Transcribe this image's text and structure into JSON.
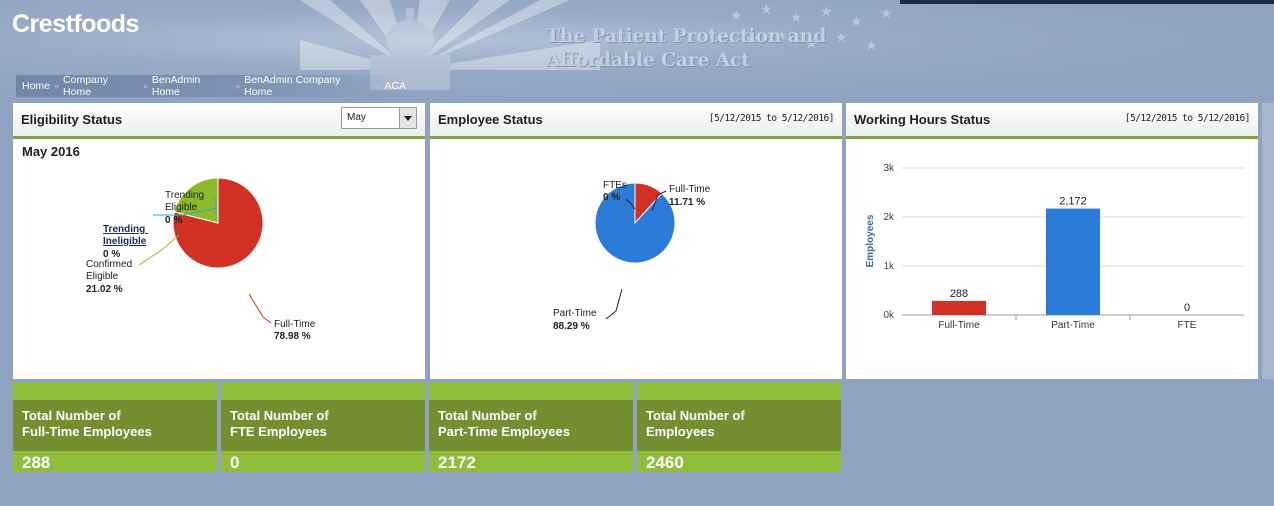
{
  "brand": "Crestfoods",
  "banner_title_line1": "The Patient Protection and",
  "banner_title_line2": "Affordable Care Act",
  "breadcrumb": [
    "Home",
    "Company Home",
    "BenAdmin Home",
    "BenAdmin Company Home",
    "ACA"
  ],
  "eligibility": {
    "title": "Eligibility Status",
    "month_select": "May",
    "period": "May 2016",
    "labels": {
      "trending_eligible_1": "Trending",
      "trending_eligible_2": "Eligible",
      "trending_eligible_pct": "0 %",
      "trending_ineligible_1": "Trending",
      "trending_ineligible_2": "Ineligible",
      "trending_ineligible_pct": "0 %",
      "confirmed_1": "Confirmed",
      "confirmed_2": "Eligible",
      "confirmed_pct": "21.02 %",
      "fulltime": "Full-Time",
      "fulltime_pct": "78.98 %"
    }
  },
  "employee_status": {
    "title": "Employee Status",
    "range": "[5/12/2015 to 5/12/2016]",
    "labels": {
      "ftes": "FTEs",
      "ftes_pct": "0 %",
      "fulltime": "Full-Time",
      "fulltime_pct": "11.71 %",
      "parttime": "Part-Time",
      "parttime_pct": "88.29 %"
    }
  },
  "working_hours": {
    "title": "Working Hours Status",
    "range": "[5/12/2015 to 5/12/2016]",
    "ylabel": "Employees"
  },
  "tiles": [
    {
      "line1": "Total Number of",
      "line2": "Full-Time Employees",
      "value": "288"
    },
    {
      "line1": "Total Number of",
      "line2": "FTE Employees",
      "value": "0"
    },
    {
      "line1": "Total Number of",
      "line2": "Part-Time Employees",
      "value": "2172"
    },
    {
      "line1": "Total Number of",
      "line2": "Employees",
      "value": "2460"
    }
  ],
  "colors": {
    "red": "#d03124",
    "green": "#8cba2a",
    "blue": "#2b7bd8",
    "accent_green": "#7fa33a",
    "tile_dark": "#758e30",
    "tile_light": "#8fbd3a"
  },
  "chart_data": [
    {
      "type": "pie",
      "categories": [
        "Full-Time",
        "Confirmed Eligible",
        "Trending Ineligible",
        "Trending Eligible"
      ],
      "values": [
        78.98,
        21.02,
        0,
        0
      ],
      "colors": [
        "#d03124",
        "#8cba2a",
        "#2b7bd8",
        "#2aa9c9"
      ]
    },
    {
      "type": "pie",
      "categories": [
        "Full-Time",
        "Part-Time",
        "FTEs"
      ],
      "values": [
        11.71,
        88.29,
        0
      ],
      "colors": [
        "#d03124",
        "#2b7bd8",
        "#8cba2a"
      ]
    },
    {
      "type": "bar",
      "categories": [
        "Full-Time",
        "Part-Time",
        "FTE"
      ],
      "values": [
        288,
        2172,
        0
      ],
      "value_labels": [
        "288",
        "2,172",
        "0"
      ],
      "colors": [
        "#d03124",
        "#2b7bd8",
        "#8cba2a"
      ],
      "ylabel": "Employees",
      "ylim": [
        0,
        3000
      ],
      "yticks": [
        "0k",
        "1k",
        "2k",
        "3k"
      ],
      "grid": true
    }
  ]
}
